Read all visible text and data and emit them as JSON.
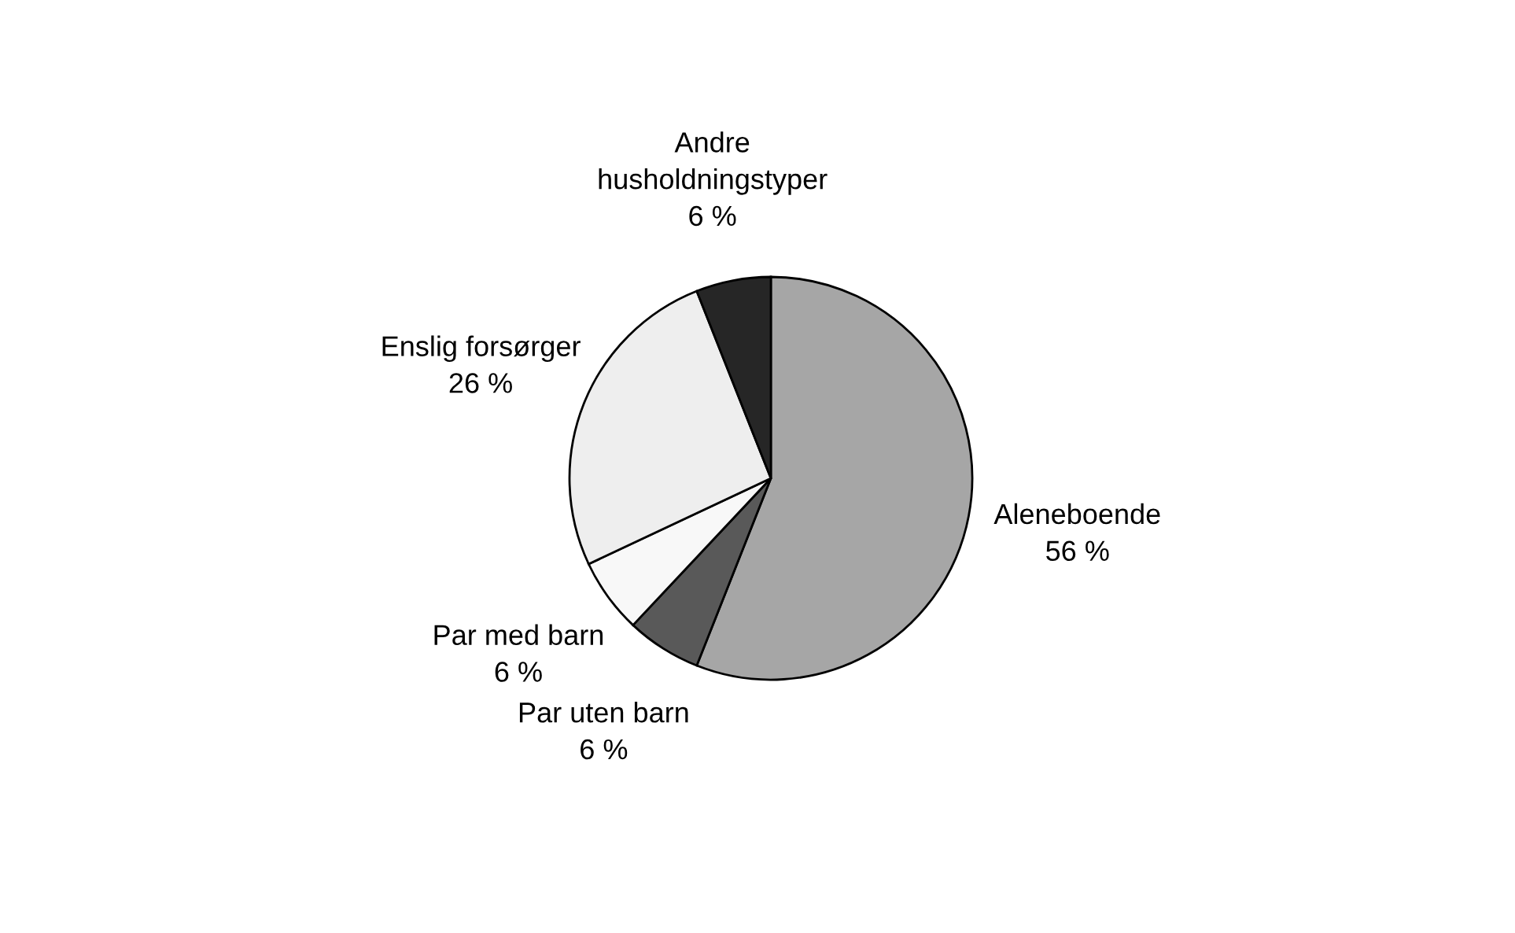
{
  "chart_data": {
    "type": "pie",
    "categories": [
      "Aleneboende",
      "Par uten barn",
      "Par med barn",
      "Enslig forsørger",
      "Andre\nhusholdningstyper"
    ],
    "values": [
      56,
      6,
      6,
      26,
      6
    ],
    "value_labels": [
      "56 %",
      "6 %",
      "6 %",
      "26 %",
      "6 %"
    ],
    "colors": [
      "#a6a6a6",
      "#595959",
      "#f8f8f8",
      "#eeeeee",
      "#262626"
    ],
    "legend": false
  }
}
